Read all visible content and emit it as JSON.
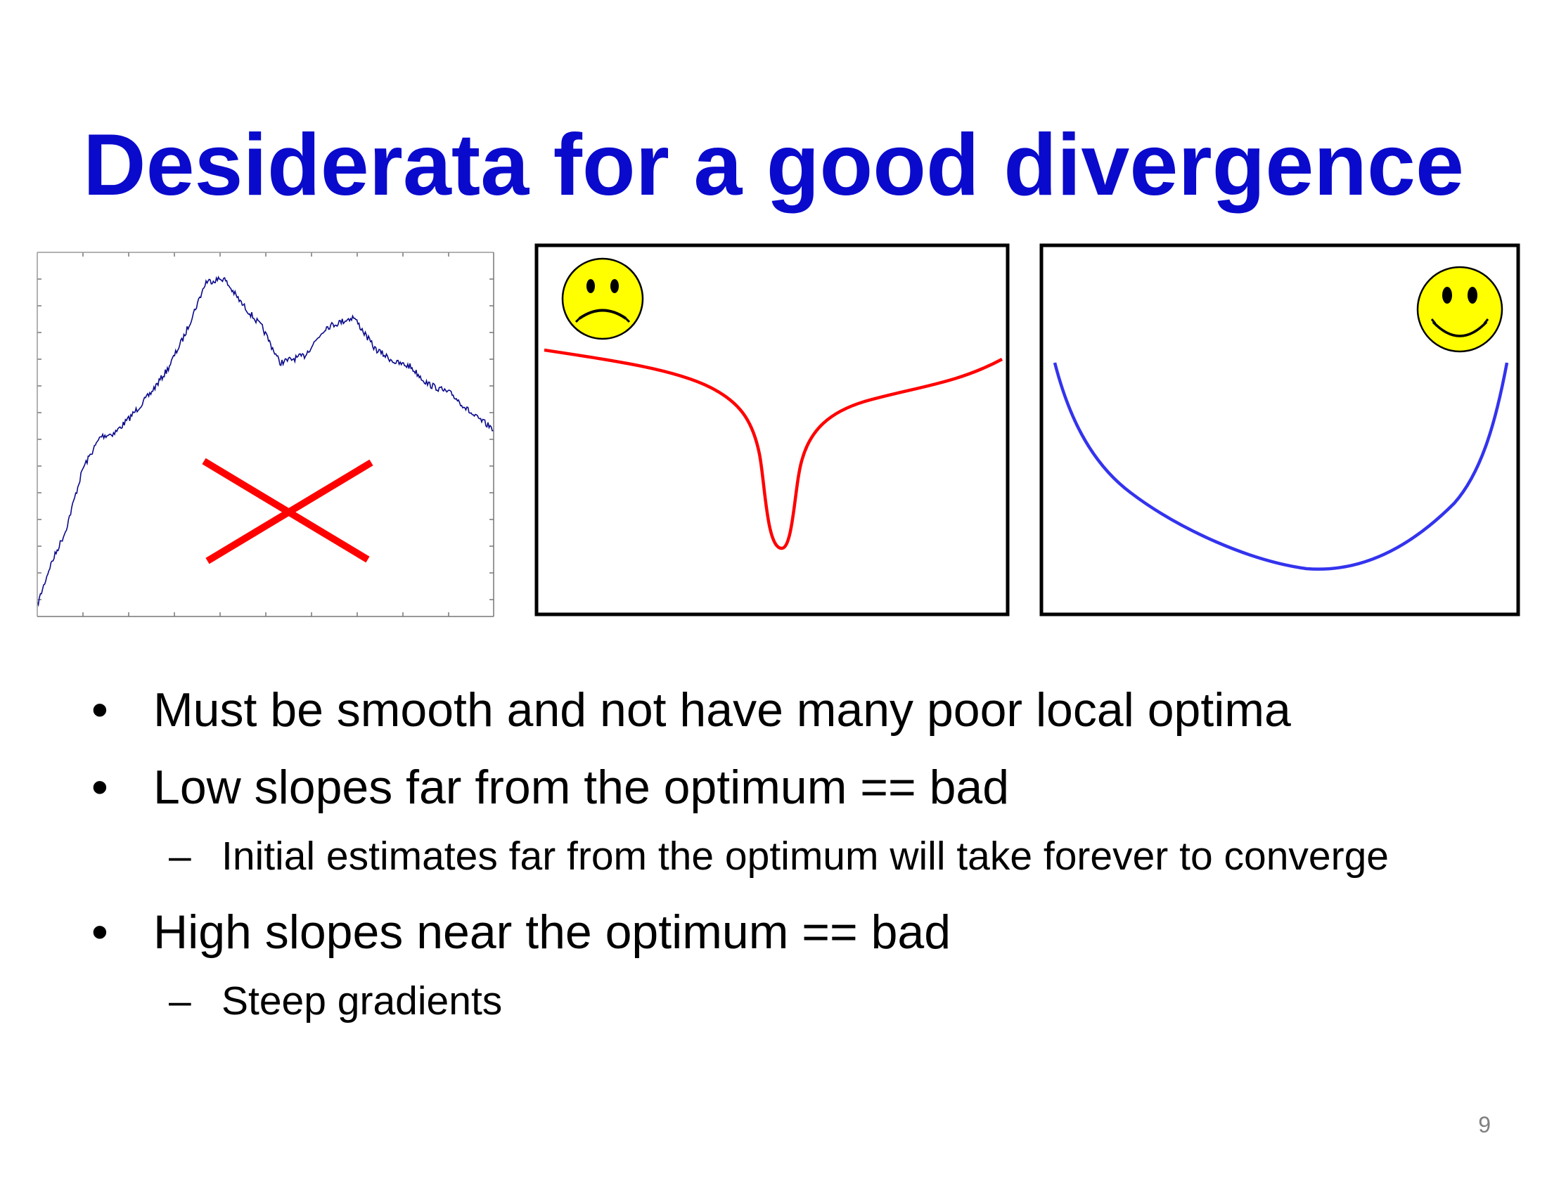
{
  "slide": {
    "title": "Desiderata for a good divergence",
    "page_number": "9",
    "bullet_symbol": "•",
    "dash_symbol": "–",
    "bullets": [
      {
        "text": "Must be smooth and not have many poor local optima"
      },
      {
        "text": "Low slopes far from the optimum == bad",
        "sub": [
          "Initial estimates far from the optimum will take forever to converge"
        ]
      },
      {
        "text": "High slopes near the optimum == bad",
        "sub": [
          "Steep gradients"
        ]
      }
    ]
  },
  "figures": {
    "noisy": {
      "trace_color": "#0a0a8a",
      "cross_color": "#ff0000",
      "icon": "red-x-icon"
    },
    "sharp_minimum": {
      "curve_color": "#ff0000",
      "icon": "sad-face-icon"
    },
    "smooth_bowl": {
      "curve_color": "#3333ee",
      "icon": "happy-face-icon"
    },
    "face_color": "#ffff00"
  }
}
